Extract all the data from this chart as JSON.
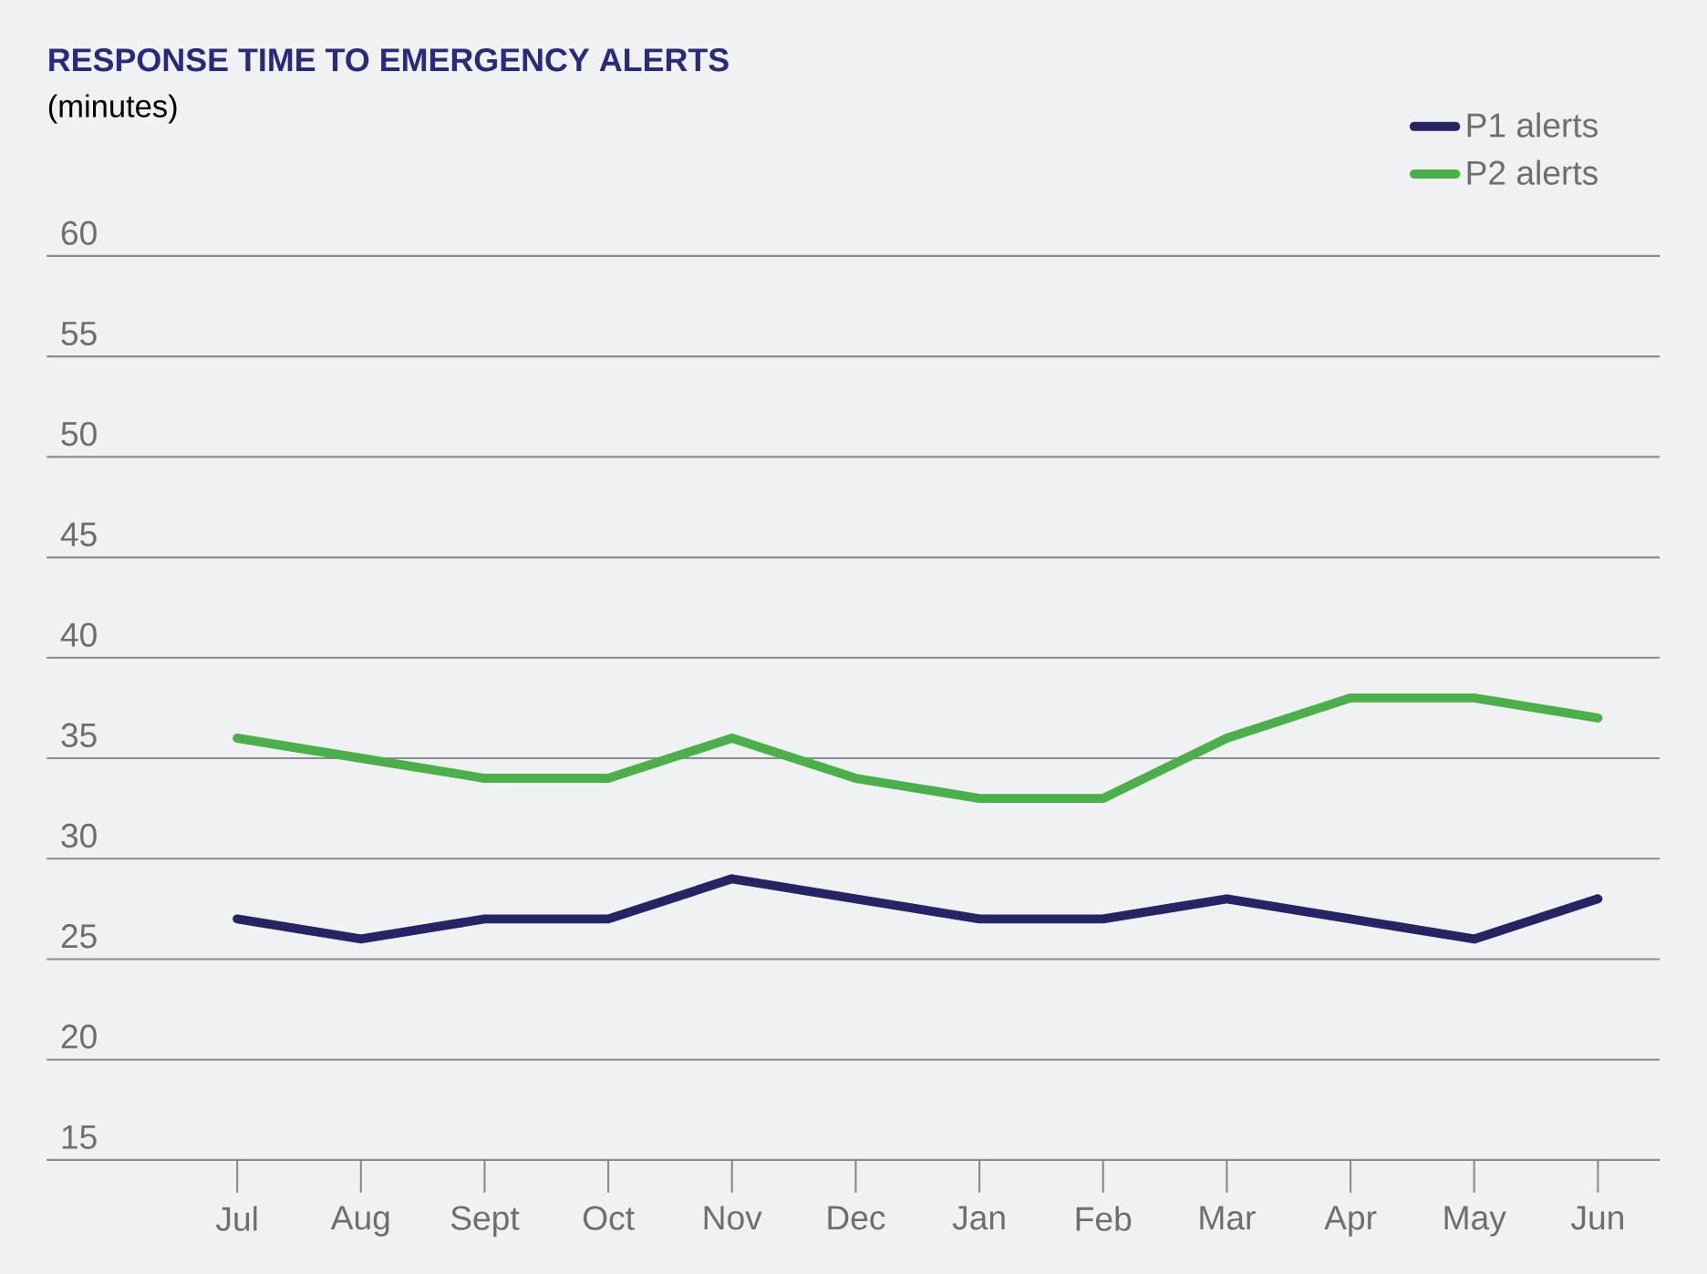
{
  "chart_data": {
    "type": "line",
    "title": "RESPONSE TIME TO EMERGENCY ALERTS",
    "subtitle": "(minutes)",
    "categories": [
      "Jul",
      "Aug",
      "Sept",
      "Oct",
      "Nov",
      "Dec",
      "Jan",
      "Feb",
      "Mar",
      "Apr",
      "May",
      "Jun"
    ],
    "series": [
      {
        "name": "P1 alerts",
        "color": "#262465",
        "values": [
          27,
          26,
          27,
          27,
          29,
          28,
          27,
          27,
          28,
          27,
          26,
          28
        ]
      },
      {
        "name": "P2 alerts",
        "color": "#4bb04a",
        "values": [
          36,
          35,
          34,
          34,
          36,
          34,
          33,
          33,
          36,
          38,
          38,
          37
        ]
      }
    ],
    "ylim": [
      15,
      60
    ],
    "yticks": [
      15,
      20,
      25,
      30,
      35,
      40,
      45,
      50,
      55,
      60
    ],
    "grid": "y",
    "legend": "top right",
    "marker": "none",
    "line_style": "solid"
  }
}
